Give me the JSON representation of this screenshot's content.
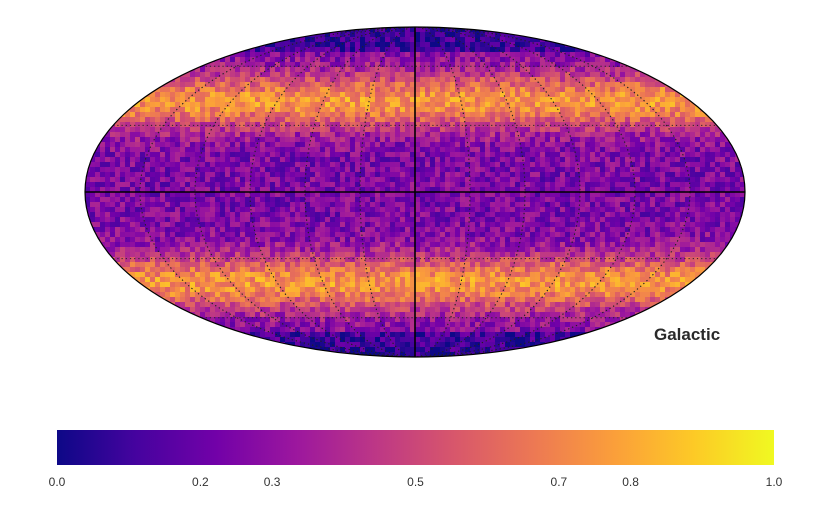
{
  "map": {
    "projection": "mollweide",
    "coordinate_system_label": "Galactic",
    "colormap": "plasma",
    "value_range": [
      0.0,
      1.0
    ],
    "graticule": "dotted",
    "axes_lines": "solid"
  },
  "colorbar": {
    "ticks": [
      "0.0",
      "0.2",
      "0.3",
      "0.5",
      "0.7",
      "0.8",
      "1.0"
    ],
    "tick_values": [
      0.0,
      0.2,
      0.3,
      0.5,
      0.7,
      0.8,
      1.0
    ],
    "stops": [
      "#0d0887",
      "#46039f",
      "#7201a8",
      "#9c179e",
      "#bd3786",
      "#d8576b",
      "#ed7953",
      "#fb9f3a",
      "#fdca26",
      "#f0f921"
    ]
  }
}
